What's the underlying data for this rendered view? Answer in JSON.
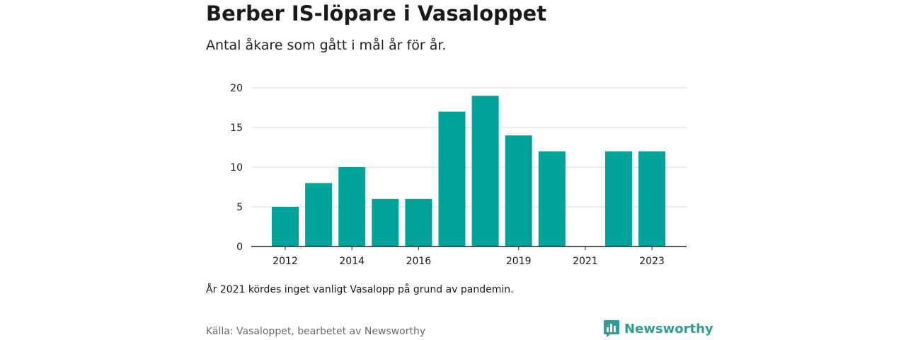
{
  "title": "Berber IS-löpare i Vasaloppet",
  "subtitle": "Antal åkare som gått i mål år för år.",
  "note": "År 2021 kördes inget vanligt Vasalopp på grund av pandemin.",
  "source": "Källa: Vasaloppet, bearbetet av Newsworthy",
  "logo": {
    "name": "Newsworthy",
    "icon": "bar-chart-bubble-icon",
    "color": "#2e9e92"
  },
  "chart_data": {
    "type": "bar",
    "title": "Berber IS-löpare i Vasaloppet",
    "subtitle": "Antal åkare som gått i mål år för år.",
    "categories": [
      "2012",
      "2013",
      "2014",
      "2015",
      "2016",
      "2017",
      "2018",
      "2019",
      "2020",
      "2021",
      "2022",
      "2023"
    ],
    "values": [
      5,
      8,
      10,
      6,
      6,
      17,
      19,
      14,
      12,
      0,
      12,
      12
    ],
    "x_tick_labels": [
      "2012",
      "2014",
      "2016",
      "2019",
      "2021",
      "2023"
    ],
    "y_ticks": [
      0,
      5,
      10,
      15,
      20
    ],
    "ylim": [
      0,
      20
    ],
    "xlabel": "",
    "ylabel": "",
    "grid": true,
    "bar_color": "#00a39a"
  }
}
